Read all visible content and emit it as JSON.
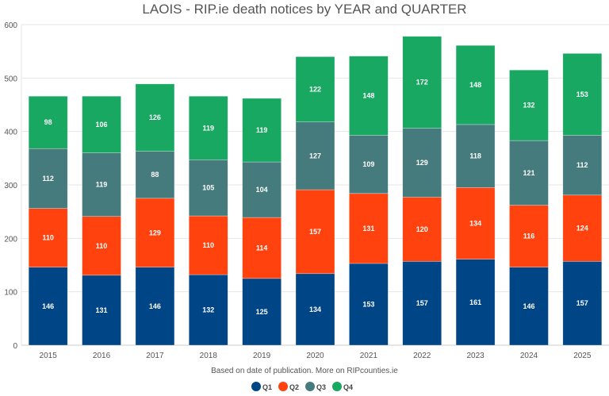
{
  "chart_data": {
    "type": "bar",
    "stacked": true,
    "title": "LAOIS - RIP.ie death notices by YEAR and QUARTER",
    "xlabel": "Based on date of publication. More on RIPcounties.ie",
    "ylabel": "",
    "ylim": [
      0,
      600
    ],
    "yticks": [
      0,
      100,
      200,
      300,
      400,
      500,
      600
    ],
    "grid": true,
    "legend": "bottom",
    "categories": [
      "2015",
      "2016",
      "2017",
      "2018",
      "2019",
      "2020",
      "2021",
      "2022",
      "2023",
      "2024",
      "2025"
    ],
    "series": [
      {
        "name": "Q1",
        "color": "#004586",
        "values": [
          146,
          131,
          146,
          132,
          125,
          134,
          153,
          157,
          161,
          146,
          157
        ]
      },
      {
        "name": "Q2",
        "color": "#ff420e",
        "values": [
          110,
          110,
          129,
          110,
          114,
          157,
          131,
          120,
          134,
          116,
          124
        ]
      },
      {
        "name": "Q3",
        "color": "#467b7e",
        "values": [
          112,
          119,
          88,
          105,
          104,
          127,
          109,
          129,
          118,
          121,
          112
        ]
      },
      {
        "name": "Q4",
        "color": "#18a862",
        "values": [
          98,
          106,
          126,
          119,
          119,
          122,
          148,
          172,
          148,
          132,
          153
        ]
      }
    ]
  }
}
